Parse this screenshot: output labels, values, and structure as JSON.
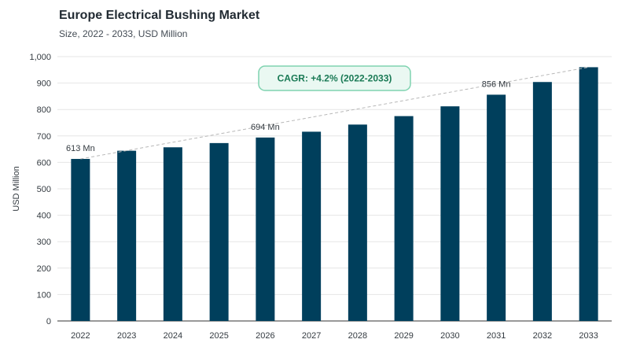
{
  "title": "Europe Electrical Bushing Market",
  "subtitle": "Size, 2022 - 2033, USD Million",
  "colors": {
    "bar": "#003f5c",
    "cagr_border": "#7fd3b0",
    "cagr_fill": "#eaf8f2",
    "trend": "#b8b8b8",
    "grid": "#e6e6e6"
  },
  "chart_data": {
    "type": "bar",
    "categories": [
      "2022",
      "2023",
      "2024",
      "2025",
      "2026",
      "2027",
      "2028",
      "2029",
      "2030",
      "2031",
      "2032",
      "2033"
    ],
    "values": [
      613,
      644,
      657,
      673,
      694,
      716,
      743,
      775,
      812,
      856,
      904,
      960
    ],
    "ylabel": "USD Million",
    "xlabel": "",
    "ylim": [
      0,
      1000
    ],
    "yticks": [
      "0",
      "100",
      "200",
      "300",
      "400",
      "500",
      "600",
      "700",
      "800",
      "900",
      "1,000"
    ],
    "data_labels": [
      {
        "category": "2022",
        "text": "613 Mn"
      },
      {
        "category": "2026",
        "text": "694 Mn"
      },
      {
        "category": "2031",
        "text": "856 Mn"
      }
    ],
    "annotation": "CAGR: +4.2% (2022-2033)",
    "trendline": true,
    "grid": "horizontal"
  }
}
